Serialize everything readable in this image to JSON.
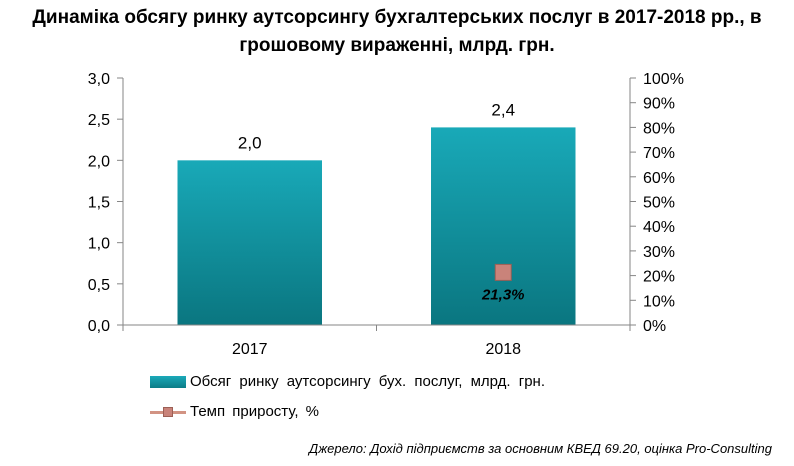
{
  "chart_data": {
    "type": "bar",
    "title": "Динаміка обсягу ринку аутсорсингу бухгалтерських послуг в 2017-2018 рр., в грошовому вираженні, млрд. грн.",
    "categories": [
      "2017",
      "2018"
    ],
    "series": [
      {
        "name": "Обсяг ринку аутсорсингу бух. послуг, млрд. грн.",
        "type": "bar",
        "axis": "left",
        "values": [
          2.0,
          2.4
        ],
        "data_labels": [
          "2,0",
          "2,4"
        ],
        "color": "#13959f"
      },
      {
        "name": "Темп приросту, %",
        "type": "line",
        "axis": "right",
        "values": [
          null,
          21.3
        ],
        "data_labels": [
          "",
          "21,3%"
        ],
        "color": "#c9837a"
      }
    ],
    "y_left": {
      "range": [
        0,
        3.0
      ],
      "ticks": [
        "0,0",
        "0,5",
        "1,0",
        "1,5",
        "2,0",
        "2,5",
        "3,0"
      ]
    },
    "y_right": {
      "range": [
        0,
        100
      ],
      "ticks": [
        "0%",
        "10%",
        "20%",
        "30%",
        "40%",
        "50%",
        "60%",
        "70%",
        "80%",
        "90%",
        "100%"
      ]
    },
    "grid": false,
    "legend_position": "bottom-left"
  },
  "source": "Джерело: Дохід підприємств за основним КВЕД 69.20, оцінка Pro-Consulting"
}
